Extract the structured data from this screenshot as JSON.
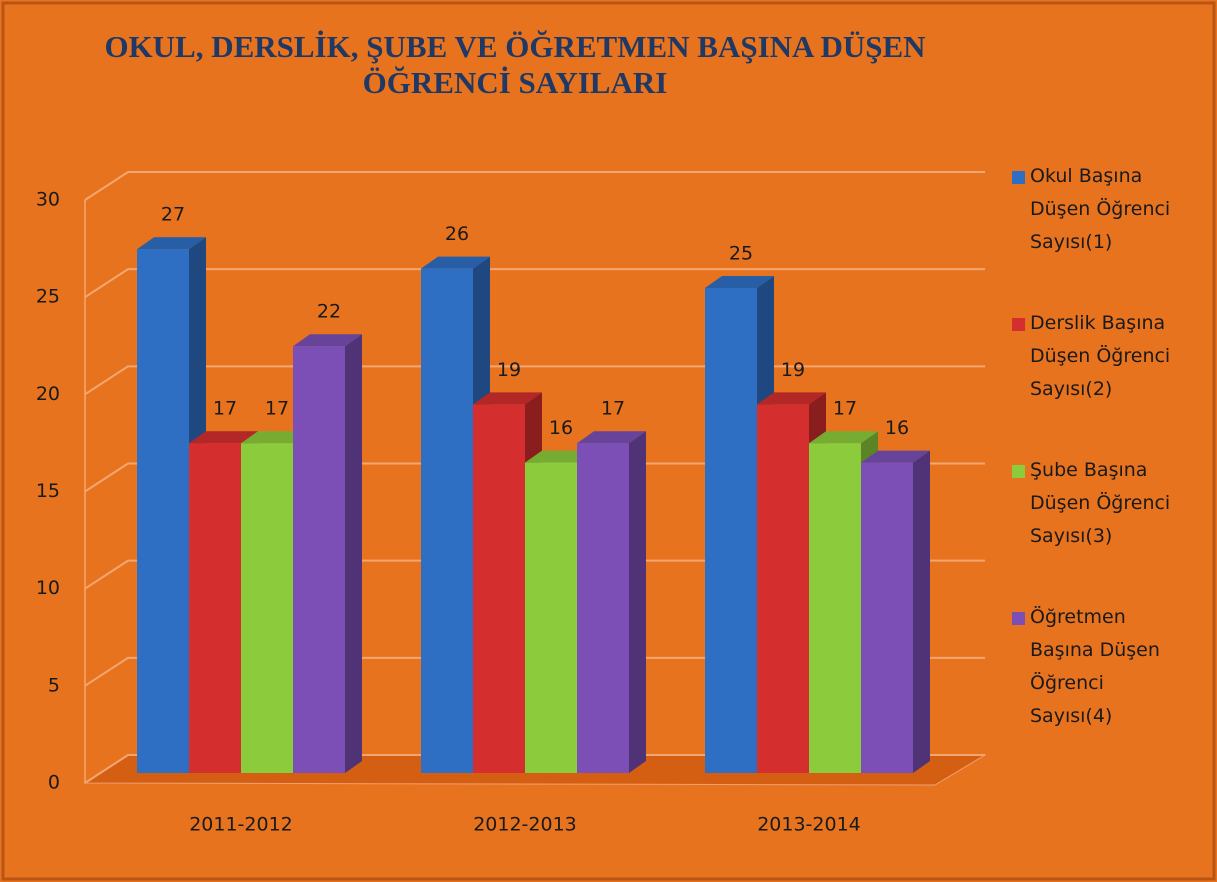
{
  "chart_data": {
    "type": "bar3d",
    "title": [
      "OKUL, DERSLİK, ŞUBE VE ÖĞRETMEN BAŞINA DÜŞEN",
      "ÖĞRENCİ SAYILARI"
    ],
    "categories": [
      "2011-2012",
      "2012-2013",
      "2013-2014"
    ],
    "series": [
      {
        "name": "Okul Başına Düşen Öğrenci Sayısı(1)",
        "color": "#2e6fc4",
        "values": [
          27,
          26,
          25
        ]
      },
      {
        "name": "Derslik Başına Düşen Öğrenci Sayısı(2)",
        "color": "#d42e2e",
        "values": [
          17,
          19,
          19
        ]
      },
      {
        "name": "Şube Başına Düşen Öğrenci Sayısı(3)",
        "color": "#8ccb3c",
        "values": [
          17,
          16,
          17
        ]
      },
      {
        "name": "Öğretmen Başına Düşen Öğrenci Sayısı(4)",
        "color": "#7b4fb5",
        "values": [
          22,
          17,
          16
        ]
      }
    ],
    "ylim": [
      0,
      30
    ],
    "yticks": [
      0,
      5,
      10,
      15,
      20,
      25,
      30
    ],
    "grid": true,
    "legend": "right"
  }
}
